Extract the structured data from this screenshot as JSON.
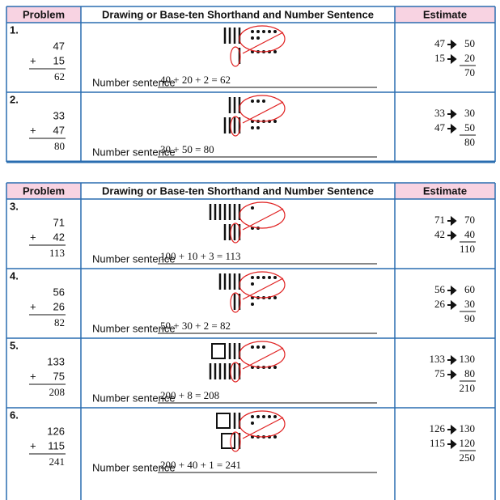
{
  "tables": [
    {
      "header": [
        "Problem",
        "Drawing or Base-ten Shorthand and Number Sentence",
        "Estimate"
      ],
      "rows": [
        {
          "number": "1.",
          "addend1": "47",
          "operator": "+",
          "addend2": "15",
          "sum": "62",
          "sentence_label": "Number sentence",
          "sentence": "40 + 20 + 2 = 62",
          "estimates": [
            {
              "from": "47",
              "to": "50"
            },
            {
              "from": "15",
              "to": "20"
            }
          ],
          "estimate_total": "70"
        },
        {
          "number": "2.",
          "addend1": "33",
          "operator": "+",
          "addend2": "47",
          "sum": "80",
          "sentence_label": "Number sentence",
          "sentence": "30 + 50 = 80",
          "estimates": [
            {
              "from": "33",
              "to": "30"
            },
            {
              "from": "47",
              "to": "50"
            }
          ],
          "estimate_total": "80"
        }
      ]
    },
    {
      "header": [
        "Problem",
        "Drawing or Base-ten Shorthand and Number Sentence",
        "Estimate"
      ],
      "rows": [
        {
          "number": "3.",
          "addend1": "71",
          "operator": "+",
          "addend2": "42",
          "sum": "113",
          "sentence_label": "Number sentence",
          "sentence": "100 + 10 + 3 = 113",
          "estimates": [
            {
              "from": "71",
              "to": "70"
            },
            {
              "from": "42",
              "to": "40"
            }
          ],
          "estimate_total": "110"
        },
        {
          "number": "4.",
          "addend1": "56",
          "operator": "+",
          "addend2": "26",
          "sum": "82",
          "sentence_label": "Number sentence",
          "sentence": "50 + 30 + 2 = 82",
          "estimates": [
            {
              "from": "56",
              "to": "60"
            },
            {
              "from": "26",
              "to": "30"
            }
          ],
          "estimate_total": "90"
        },
        {
          "number": "5.",
          "addend1": "133",
          "operator": "+",
          "addend2": "75",
          "sum": "208",
          "sentence_label": "Number sentence",
          "sentence": "200 + 8 = 208",
          "estimates": [
            {
              "from": "133",
              "to": "130"
            },
            {
              "from": "75",
              "to": "80"
            }
          ],
          "estimate_total": "210"
        },
        {
          "number": "6.",
          "addend1": "126",
          "operator": "+",
          "addend2": "115",
          "sum": "241",
          "sentence_label": "Number sentence",
          "sentence": "200 + 40 + 1 = 241",
          "estimates": [
            {
              "from": "126",
              "to": "130"
            },
            {
              "from": "115",
              "to": "120"
            }
          ],
          "estimate_total": "250"
        }
      ]
    }
  ]
}
